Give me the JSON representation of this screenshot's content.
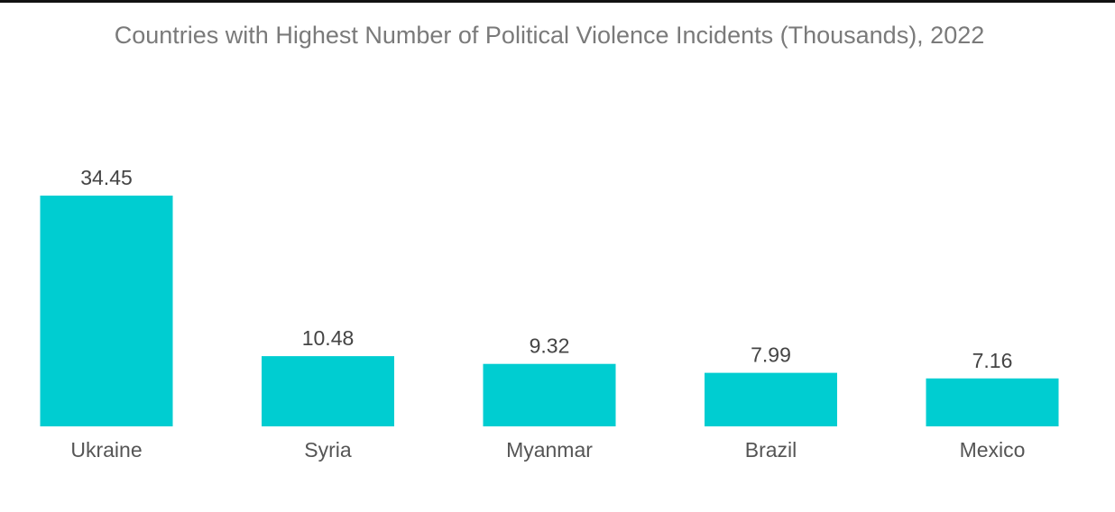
{
  "chart_data": {
    "type": "bar",
    "title": "Countries with Highest Number of Political Violence Incidents (Thousands), 2022",
    "categories": [
      "Ukraine",
      "Syria",
      "Myanmar",
      "Brazil",
      "Mexico"
    ],
    "values": [
      34.45,
      10.48,
      9.32,
      7.99,
      7.16
    ],
    "value_labels": [
      "34.45",
      "10.48",
      "9.32",
      "7.99",
      "7.16"
    ],
    "xlabel": "",
    "ylabel": "",
    "ylim": [
      0,
      34.45
    ],
    "grid": false,
    "legend": "none",
    "colors": {
      "bar": "#00cdd1"
    }
  }
}
